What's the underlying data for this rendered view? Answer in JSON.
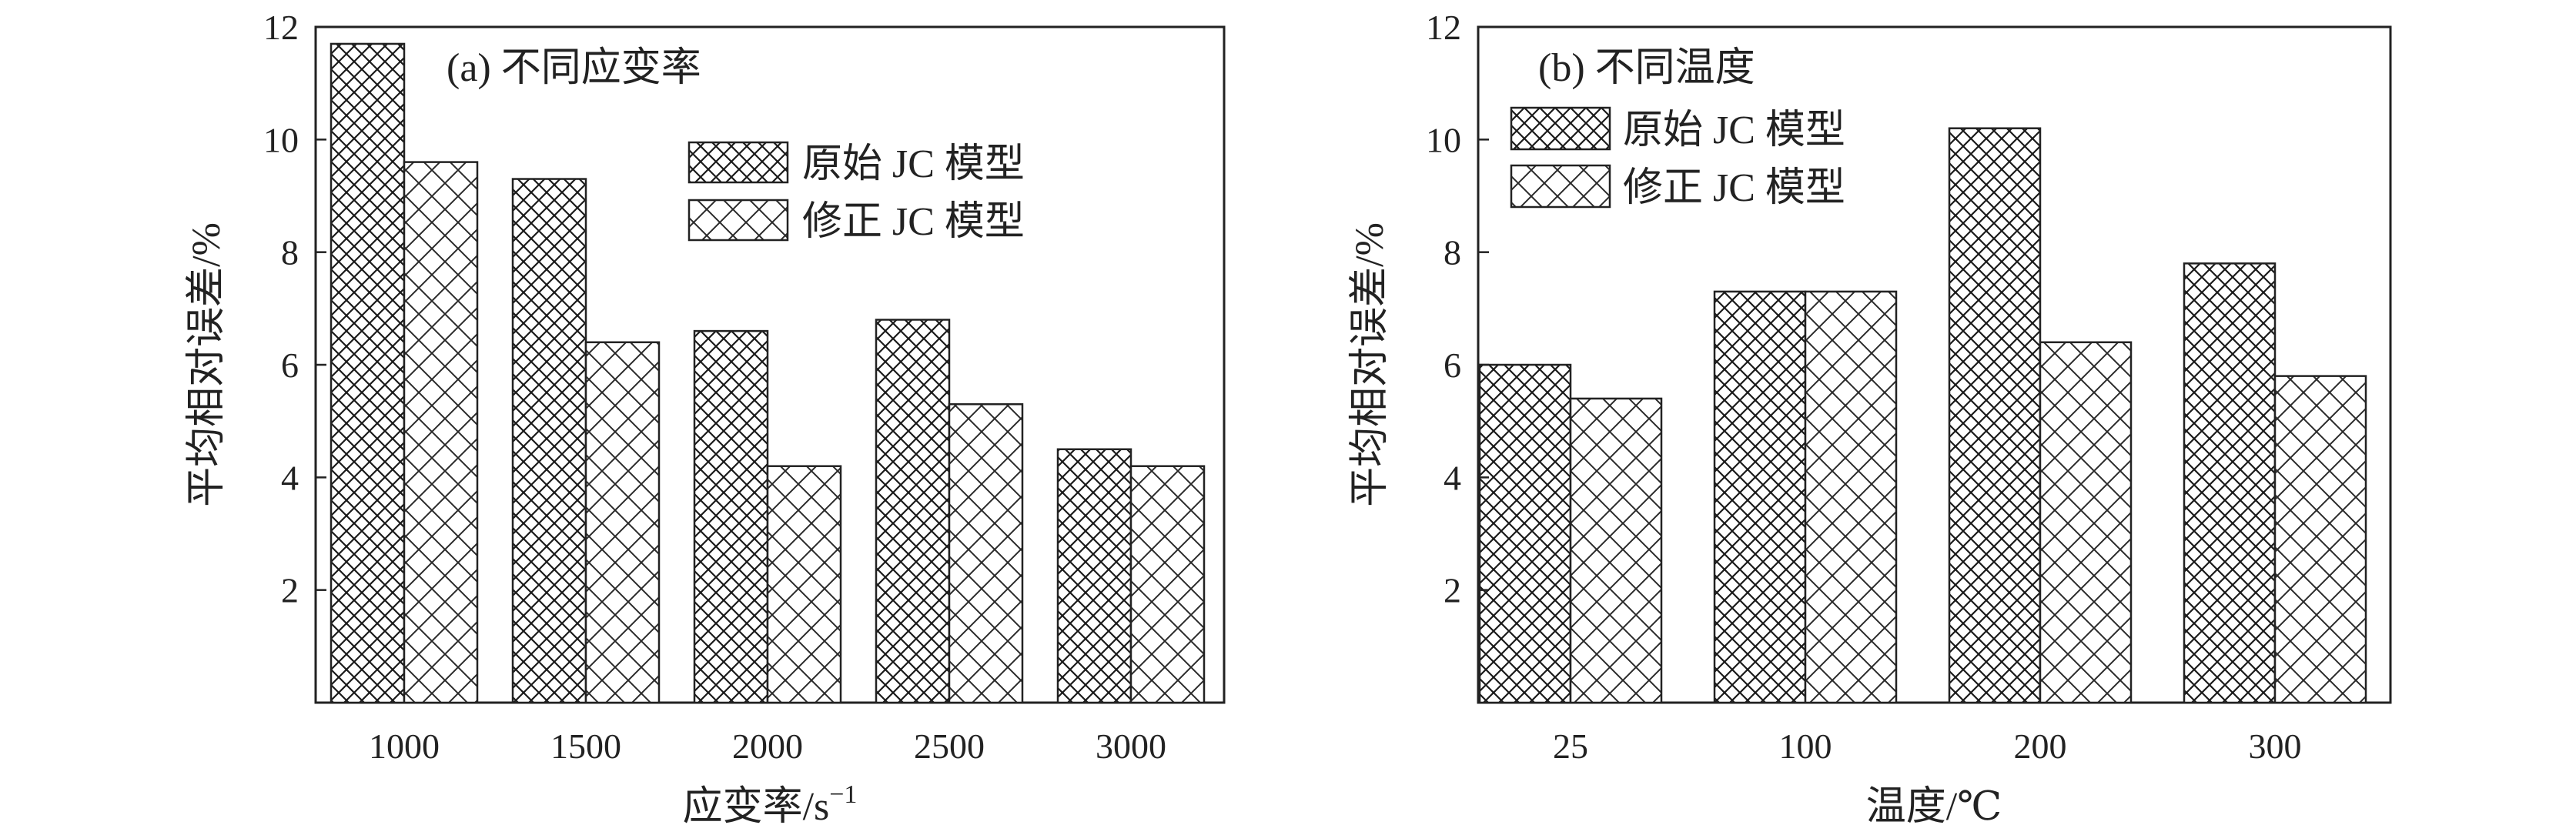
{
  "chart_data": [
    {
      "type": "bar",
      "annotation": "(a) 不同应变率",
      "xlabel": "应变率/s",
      "xlabel_sup": "−1",
      "ylabel": "平均相对误差/%",
      "ylim": [
        0,
        12
      ],
      "yticks": [
        "2",
        "4",
        "6",
        "8",
        "10",
        "12"
      ],
      "categories": [
        "1000",
        "1500",
        "2000",
        "2500",
        "3000"
      ],
      "series": [
        {
          "name": "原始 JC 模型",
          "values": [
            11.7,
            9.3,
            6.6,
            6.8,
            4.5
          ]
        },
        {
          "name": "修正 JC 模型",
          "values": [
            9.6,
            6.4,
            4.2,
            5.3,
            4.2
          ]
        }
      ],
      "legend_position": "upper-right",
      "grid": false
    },
    {
      "type": "bar",
      "annotation": "(b) 不同温度",
      "xlabel": "温度/℃",
      "ylabel": "平均相对误差/%",
      "ylim": [
        0,
        12
      ],
      "yticks": [
        "2",
        "4",
        "6",
        "8",
        "10",
        "12"
      ],
      "categories": [
        "25",
        "100",
        "200",
        "300"
      ],
      "series": [
        {
          "name": "原始 JC 模型",
          "values": [
            6.0,
            7.3,
            10.2,
            7.8
          ]
        },
        {
          "name": "修正 JC 模型",
          "values": [
            5.4,
            7.3,
            6.4,
            5.8
          ]
        }
      ],
      "legend_position": "upper-left",
      "grid": false
    }
  ]
}
